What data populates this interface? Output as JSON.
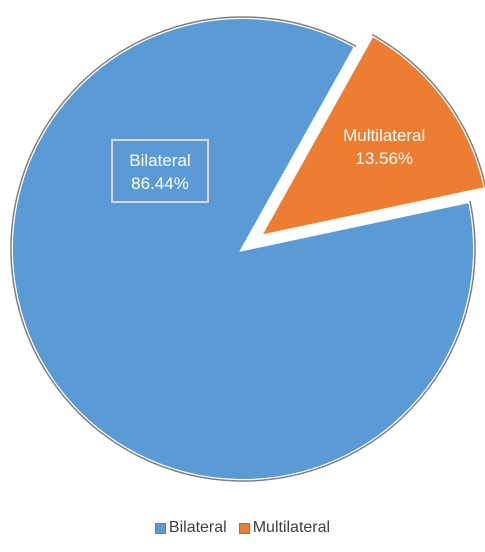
{
  "chart_data": {
    "type": "pie",
    "title": "",
    "legend_position": "bottom",
    "slices": [
      {
        "name": "Bilateral",
        "value": 86.44,
        "label": "86.44%",
        "color": "#5B9BD5",
        "exploded": false
      },
      {
        "name": "Multilateral",
        "value": 13.56,
        "label": "13.56%",
        "color": "#ED7D31",
        "exploded": true
      }
    ]
  }
}
